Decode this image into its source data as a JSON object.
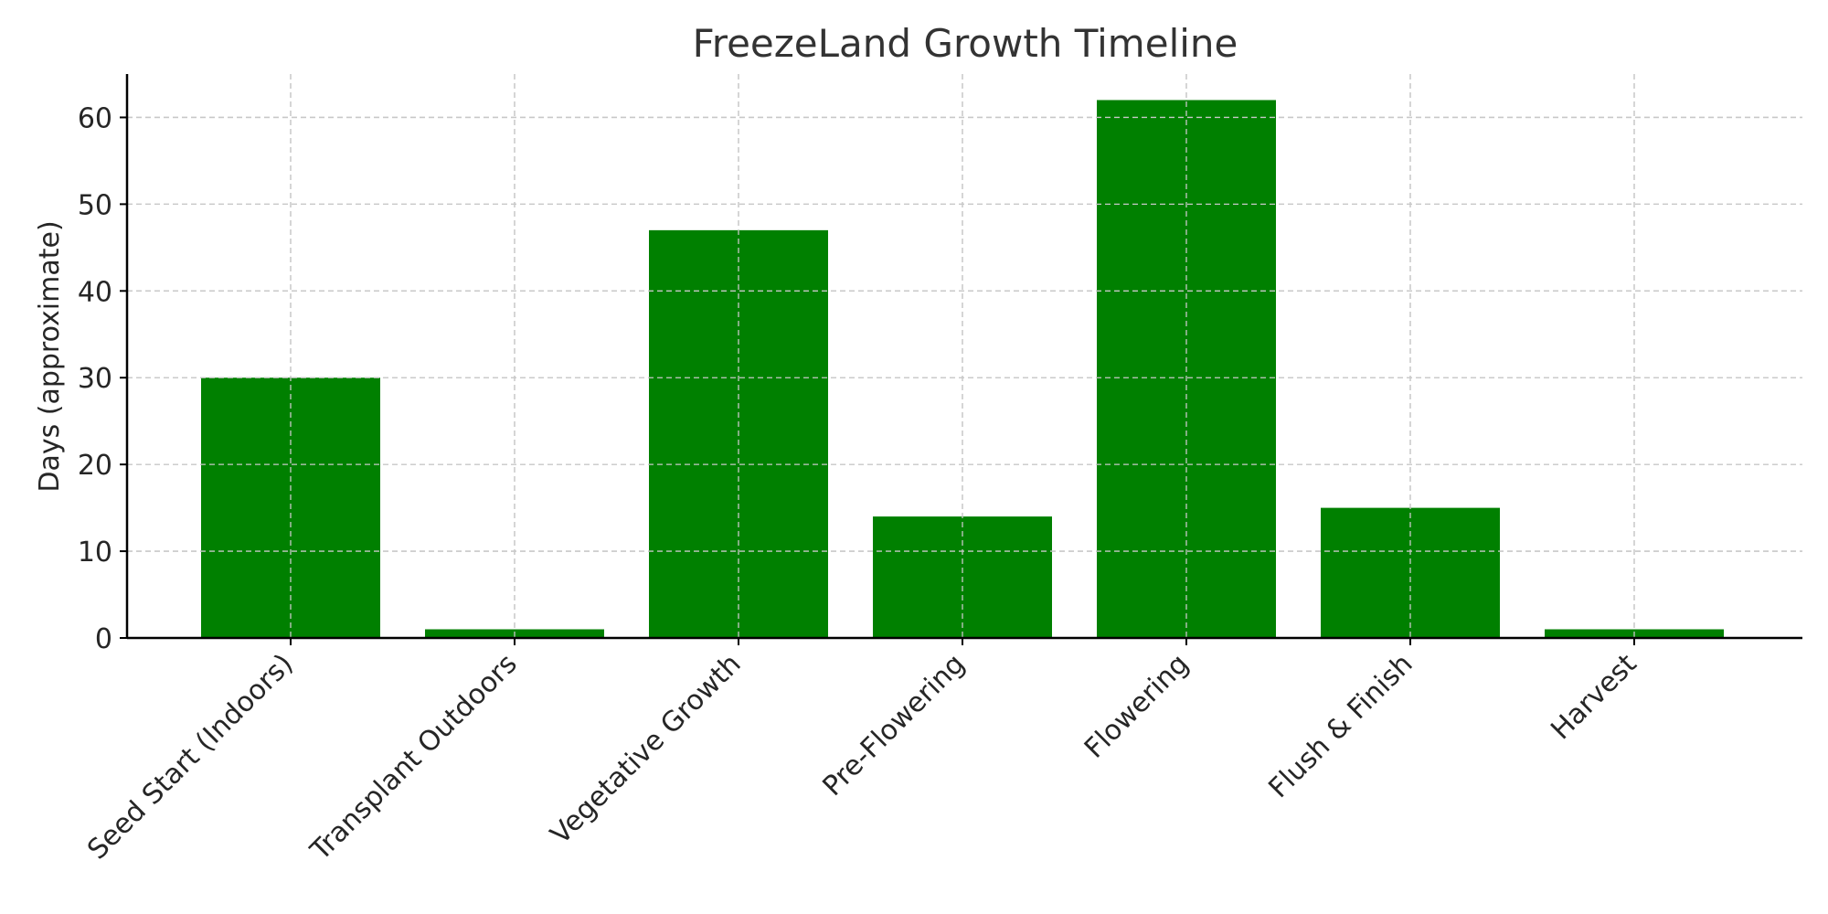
{
  "chart_data": {
    "type": "bar",
    "title": "FreezeLand Growth Timeline",
    "xlabel": "",
    "ylabel": "Days (approximate)",
    "categories": [
      "Seed Start (Indoors)",
      "Transplant Outdoors",
      "Vegetative Growth",
      "Pre-Flowering",
      "Flowering",
      "Flush & Finish",
      "Harvest"
    ],
    "values": [
      30,
      1,
      47,
      14,
      62,
      15,
      1
    ],
    "ylim": [
      0,
      65
    ],
    "yticks": [
      0,
      10,
      20,
      30,
      40,
      50,
      60
    ],
    "bar_color": "#008000",
    "grid": true,
    "legend": "none"
  }
}
